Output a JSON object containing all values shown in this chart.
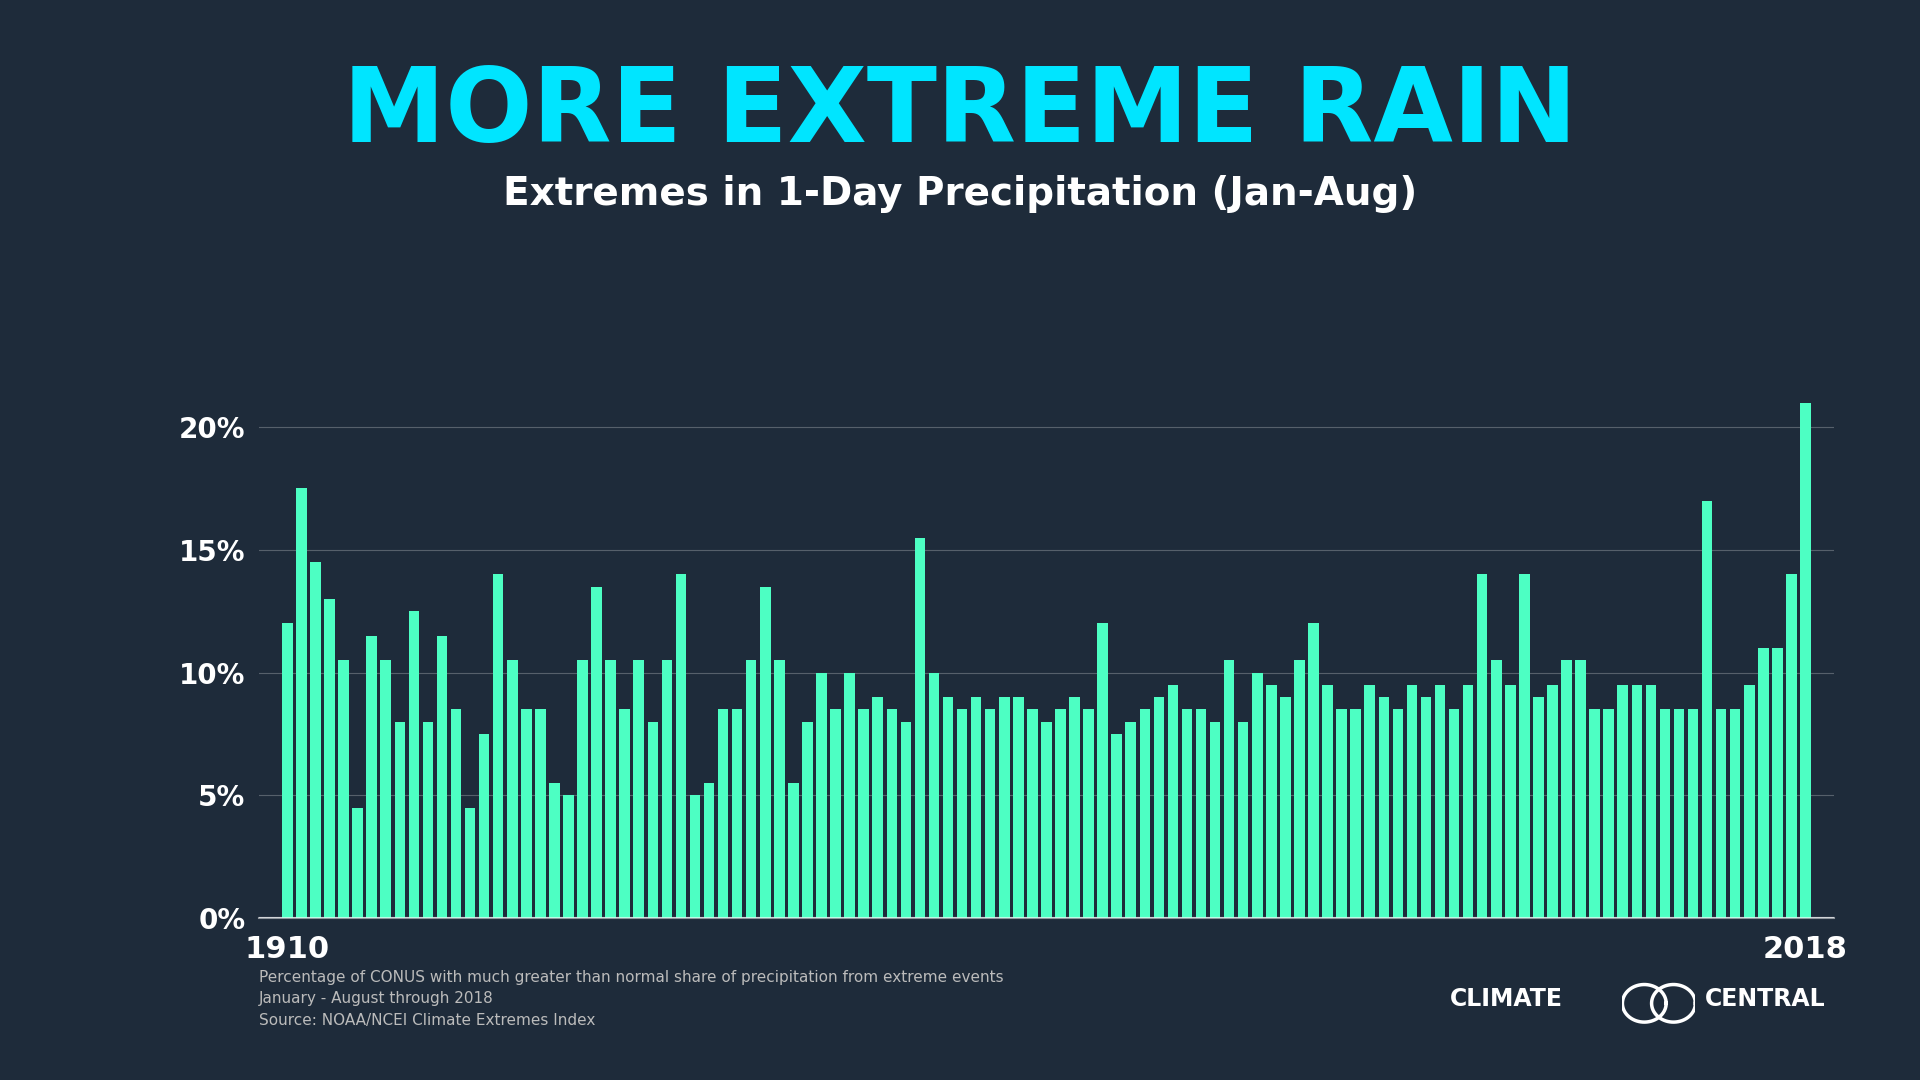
{
  "title": "MORE EXTREME RAIN",
  "subtitle": "Extremes in 1-Day Precipitation (Jan-Aug)",
  "title_color": "#00E5FF",
  "subtitle_color": "#FFFFFF",
  "bar_color": "#4DFFC3",
  "bg_color": "#1E2B3A",
  "axis_text_color": "#FFFFFF",
  "grid_color": "#FFFFFF",
  "years": [
    1910,
    1911,
    1912,
    1913,
    1914,
    1915,
    1916,
    1917,
    1918,
    1919,
    1920,
    1921,
    1922,
    1923,
    1924,
    1925,
    1926,
    1927,
    1928,
    1929,
    1930,
    1931,
    1932,
    1933,
    1934,
    1935,
    1936,
    1937,
    1938,
    1939,
    1940,
    1941,
    1942,
    1943,
    1944,
    1945,
    1946,
    1947,
    1948,
    1949,
    1950,
    1951,
    1952,
    1953,
    1954,
    1955,
    1956,
    1957,
    1958,
    1959,
    1960,
    1961,
    1962,
    1963,
    1964,
    1965,
    1966,
    1967,
    1968,
    1969,
    1970,
    1971,
    1972,
    1973,
    1974,
    1975,
    1976,
    1977,
    1978,
    1979,
    1980,
    1981,
    1982,
    1983,
    1984,
    1985,
    1986,
    1987,
    1988,
    1989,
    1990,
    1991,
    1992,
    1993,
    1994,
    1995,
    1996,
    1997,
    1998,
    1999,
    2000,
    2001,
    2002,
    2003,
    2004,
    2005,
    2006,
    2007,
    2008,
    2009,
    2010,
    2011,
    2012,
    2013,
    2014,
    2015,
    2016,
    2017,
    2018
  ],
  "values": [
    12.0,
    17.5,
    14.5,
    13.0,
    10.5,
    4.5,
    11.5,
    10.5,
    8.0,
    12.5,
    8.0,
    11.5,
    8.5,
    4.5,
    7.5,
    14.0,
    10.5,
    8.5,
    8.5,
    5.5,
    5.0,
    10.5,
    13.5,
    10.5,
    8.5,
    10.5,
    8.0,
    10.5,
    14.0,
    5.0,
    5.5,
    8.5,
    8.5,
    10.5,
    13.5,
    10.5,
    5.5,
    8.0,
    10.0,
    8.5,
    10.0,
    8.5,
    9.0,
    8.5,
    8.0,
    15.5,
    10.0,
    9.0,
    8.5,
    9.0,
    8.5,
    9.0,
    9.0,
    8.5,
    8.0,
    8.5,
    9.0,
    8.5,
    12.0,
    7.5,
    8.0,
    8.5,
    9.0,
    9.5,
    8.5,
    8.5,
    8.0,
    10.5,
    8.0,
    10.0,
    9.5,
    9.0,
    10.5,
    12.0,
    9.5,
    8.5,
    8.5,
    9.5,
    9.0,
    8.5,
    9.5,
    9.0,
    9.5,
    8.5,
    9.5,
    14.0,
    10.5,
    9.5,
    14.0,
    9.0,
    9.5,
    10.5,
    10.5,
    8.5,
    8.5,
    9.5,
    9.5,
    9.5,
    8.5,
    8.5,
    8.5,
    17.0,
    8.5,
    8.5,
    9.5,
    11.0,
    11.0,
    14.0,
    21.0
  ],
  "footnote_line1": "Percentage of CONUS with much greater than normal share of precipitation from extreme events",
  "footnote_line2": "January - August through 2018",
  "footnote_line3": "Source: NOAA/NCEI Climate Extremes Index",
  "ylim": [
    0,
    22
  ],
  "yticks": [
    0,
    5,
    10,
    15,
    20
  ],
  "ytick_labels": [
    "0%",
    "5%",
    "10%",
    "15%",
    "20%"
  ]
}
